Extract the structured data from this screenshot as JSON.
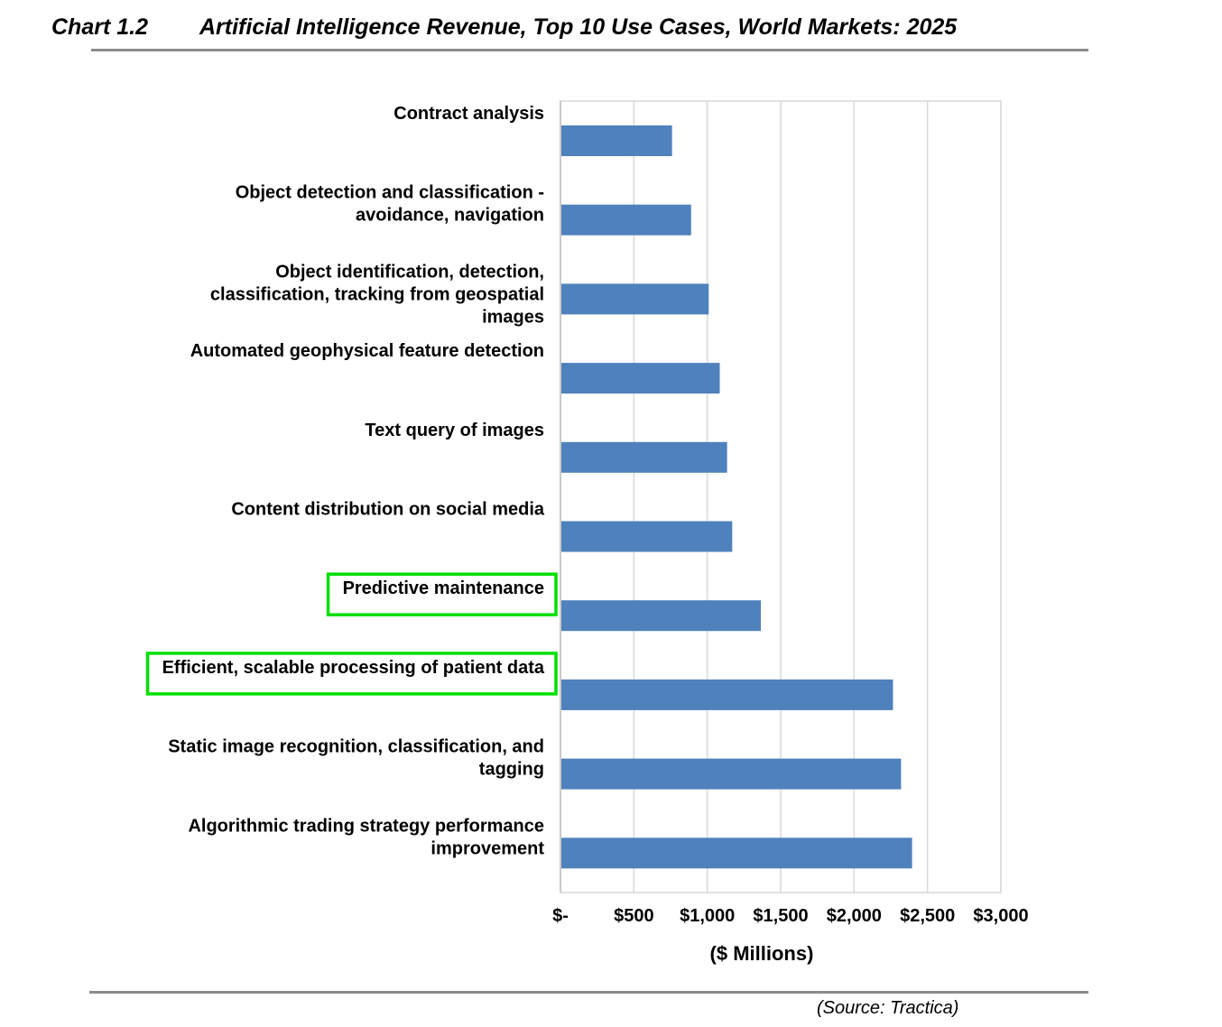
{
  "header": {
    "chart_number": "Chart 1.2",
    "title": "Artificial Intelligence Revenue, Top 10 Use Cases, World Markets: 2025"
  },
  "source": "(Source: Tractica)",
  "colors": {
    "bar": "#4f81bd",
    "highlight_box": "#00e000",
    "gridline": "#d9d9d9",
    "rule": "#8c8c8c"
  },
  "chart_data": {
    "type": "bar",
    "orientation": "horizontal",
    "title": "Artificial Intelligence Revenue, Top 10 Use Cases, World Markets: 2025",
    "xlabel": "($ Millions)",
    "ylabel": "",
    "categories": [
      "Contract analysis",
      "Object detection and classification - avoidance, navigation",
      "Object identification, detection, classification, tracking from geospatial images",
      "Automated geophysical feature detection",
      "Text query of images",
      "Content distribution on social media",
      "Predictive maintenance",
      "Efficient, scalable processing of patient data",
      "Static image recognition, classification, and tagging",
      "Algorithmic trading strategy performance improvement"
    ],
    "category_lines": [
      [
        "Contract analysis"
      ],
      [
        "Object detection and classification -",
        "avoidance, navigation"
      ],
      [
        "Object identification, detection,",
        "classification, tracking from geospatial",
        "images"
      ],
      [
        "Automated geophysical feature detection"
      ],
      [
        "Text query of images"
      ],
      [
        "Content distribution on social media"
      ],
      [
        "Predictive maintenance"
      ],
      [
        "Efficient, scalable processing of patient data"
      ],
      [
        "Static image recognition, classification, and",
        "tagging"
      ],
      [
        "Algorithmic trading strategy performance",
        "improvement"
      ]
    ],
    "values": [
      760,
      890,
      1010,
      1085,
      1135,
      1170,
      1365,
      2265,
      2320,
      2395
    ],
    "xlim": [
      0,
      3000
    ],
    "xticks": [
      0,
      500,
      1000,
      1500,
      2000,
      2500,
      3000
    ],
    "xtick_labels": [
      "$-",
      "$500",
      "$1,000",
      "$1,500",
      "$2,000",
      "$2,500",
      "$3,000"
    ],
    "grid": true,
    "legend": "none",
    "highlighted_categories": [
      "Predictive maintenance",
      "Efficient, scalable processing of patient data"
    ]
  }
}
